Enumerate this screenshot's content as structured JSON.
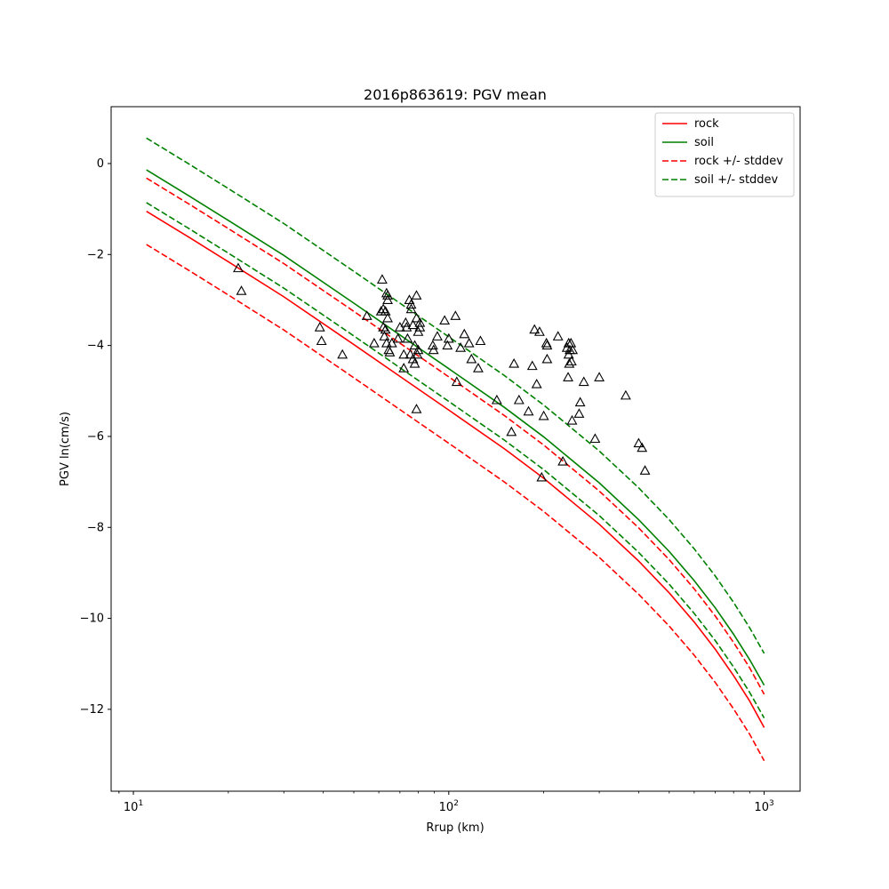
{
  "chart_data": {
    "type": "line",
    "title": "2016p863619: PGV mean",
    "xlabel": "Rrup (km)",
    "ylabel": "PGV ln(cm/s)",
    "xscale": "log",
    "xlim": [
      8.5,
      1300
    ],
    "ylim": [
      -13.8,
      1.25
    ],
    "xticks": [
      {
        "value": 10,
        "base": "10",
        "exp": "1"
      },
      {
        "value": 100,
        "base": "10",
        "exp": "2"
      },
      {
        "value": 1000,
        "base": "10",
        "exp": "3"
      }
    ],
    "yticks": [
      {
        "value": 0,
        "label": "0"
      },
      {
        "value": -2,
        "label": "−2"
      },
      {
        "value": -4,
        "label": "−4"
      },
      {
        "value": -6,
        "label": "−6"
      },
      {
        "value": -8,
        "label": "−8"
      },
      {
        "value": -10,
        "label": "−10"
      },
      {
        "value": -12,
        "label": "−12"
      }
    ],
    "grid": false,
    "legend_position": "top-right",
    "x": [
      11,
      15,
      20,
      30,
      50,
      70,
      100,
      150,
      200,
      300,
      400,
      500,
      600,
      700,
      800,
      900,
      1000
    ],
    "series": [
      {
        "name": "rock",
        "color": "#ff0000",
        "dash": "solid",
        "values": [
          -1.05,
          -1.62,
          -2.16,
          -2.93,
          -3.98,
          -4.68,
          -5.42,
          -6.27,
          -6.92,
          -7.93,
          -8.74,
          -9.44,
          -10.08,
          -10.68,
          -11.26,
          -11.82,
          -12.4
        ]
      },
      {
        "name": "soil",
        "color": "#008000",
        "dash": "solid",
        "values": [
          -0.14,
          -0.71,
          -1.25,
          -2.02,
          -3.07,
          -3.77,
          -4.51,
          -5.36,
          -6.01,
          -7.02,
          -7.83,
          -8.53,
          -9.17,
          -9.77,
          -10.35,
          -10.91,
          -11.47
        ]
      },
      {
        "name": "rock +/- stddev",
        "color": "#ff0000",
        "dash": "dashed",
        "values": [
          -0.32,
          -0.89,
          -1.43,
          -2.2,
          -3.25,
          -3.95,
          -4.69,
          -5.54,
          -6.19,
          -7.2,
          -8.01,
          -8.71,
          -9.35,
          -9.95,
          -10.53,
          -11.09,
          -11.67
        ]
      },
      {
        "name": "",
        "color": "#ff0000",
        "dash": "dashed",
        "values": [
          -1.78,
          -2.35,
          -2.89,
          -3.66,
          -4.71,
          -5.41,
          -6.15,
          -7.0,
          -7.65,
          -8.66,
          -9.47,
          -10.17,
          -10.81,
          -11.41,
          -11.99,
          -12.55,
          -13.13
        ]
      },
      {
        "name": "soil +/- stddev",
        "color": "#008000",
        "dash": "dashed",
        "values": [
          0.56,
          -0.01,
          -0.55,
          -1.32,
          -2.37,
          -3.07,
          -3.81,
          -4.66,
          -5.31,
          -6.32,
          -7.13,
          -7.83,
          -8.47,
          -9.07,
          -9.65,
          -10.21,
          -10.77
        ]
      },
      {
        "name": "",
        "color": "#008000",
        "dash": "dashed",
        "values": [
          -0.86,
          -1.43,
          -1.97,
          -2.74,
          -3.79,
          -4.49,
          -5.23,
          -6.08,
          -6.73,
          -7.74,
          -8.55,
          -9.25,
          -9.89,
          -10.49,
          -11.07,
          -11.63,
          -12.19
        ]
      }
    ],
    "observations": {
      "marker": "triangle",
      "color": "#000000",
      "points": [
        [
          21.5,
          -2.3
        ],
        [
          22.0,
          -2.8
        ],
        [
          39,
          -3.6
        ],
        [
          39.5,
          -3.9
        ],
        [
          46,
          -4.2
        ],
        [
          55,
          -3.35
        ],
        [
          58,
          -3.95
        ],
        [
          61,
          -3.25
        ],
        [
          61.5,
          -2.55
        ],
        [
          62,
          -3.2
        ],
        [
          62,
          -3.6
        ],
        [
          62.5,
          -3.8
        ],
        [
          63,
          -3.25
        ],
        [
          63,
          -3.65
        ],
        [
          63.5,
          -2.85
        ],
        [
          63.5,
          -3.95
        ],
        [
          64,
          -2.9
        ],
        [
          64,
          -3.0
        ],
        [
          64,
          -3.4
        ],
        [
          64.5,
          -4.1
        ],
        [
          65,
          -4.15
        ],
        [
          66,
          -3.95
        ],
        [
          69,
          -3.85
        ],
        [
          70,
          -3.6
        ],
        [
          72,
          -4.5
        ],
        [
          72,
          -4.2
        ],
        [
          73,
          -3.5
        ],
        [
          73.5,
          -3.6
        ],
        [
          74,
          -3.85
        ],
        [
          75,
          -3.0
        ],
        [
          75.5,
          -4.2
        ],
        [
          76,
          -3.1
        ],
        [
          76,
          -3.2
        ],
        [
          77,
          -3.55
        ],
        [
          77,
          -4.3
        ],
        [
          78,
          -4.0
        ],
        [
          78,
          -4.4
        ],
        [
          79,
          -2.9
        ],
        [
          79,
          -3.4
        ],
        [
          79,
          -5.4
        ],
        [
          79.5,
          -4.2
        ],
        [
          80,
          -3.7
        ],
        [
          80,
          -4.1
        ],
        [
          81,
          -3.5
        ],
        [
          81,
          -3.6
        ],
        [
          89,
          -4.0
        ],
        [
          89.5,
          -4.1
        ],
        [
          92,
          -3.8
        ],
        [
          97,
          -3.45
        ],
        [
          99,
          -4.0
        ],
        [
          100,
          -3.85
        ],
        [
          105,
          -3.35
        ],
        [
          106,
          -4.8
        ],
        [
          109,
          -4.05
        ],
        [
          112,
          -3.75
        ],
        [
          116,
          -3.95
        ],
        [
          118,
          -4.3
        ],
        [
          124,
          -4.5
        ],
        [
          126,
          -3.9
        ],
        [
          142,
          -5.2
        ],
        [
          158,
          -5.9
        ],
        [
          161,
          -4.4
        ],
        [
          167,
          -5.2
        ],
        [
          179,
          -5.45
        ],
        [
          184,
          -4.45
        ],
        [
          187,
          -3.65
        ],
        [
          190,
          -4.85
        ],
        [
          194,
          -3.7
        ],
        [
          197,
          -6.9
        ],
        [
          200,
          -5.55
        ],
        [
          204,
          -3.95
        ],
        [
          205,
          -4.0
        ],
        [
          205,
          -4.3
        ],
        [
          222,
          -3.8
        ],
        [
          230,
          -6.55
        ],
        [
          237,
          -4.05
        ],
        [
          239,
          -4.7
        ],
        [
          240,
          -3.95
        ],
        [
          240,
          -4.2
        ],
        [
          241,
          -4.4
        ],
        [
          242,
          -4.1
        ],
        [
          244,
          -3.95
        ],
        [
          245,
          -4.35
        ],
        [
          246,
          -5.65
        ],
        [
          247,
          -4.1
        ],
        [
          259,
          -5.5
        ],
        [
          261,
          -5.25
        ],
        [
          268,
          -4.8
        ],
        [
          291,
          -6.05
        ],
        [
          300,
          -4.7
        ],
        [
          364,
          -5.1
        ],
        [
          400,
          -6.15
        ],
        [
          410,
          -6.25
        ],
        [
          419,
          -6.75
        ]
      ]
    }
  }
}
